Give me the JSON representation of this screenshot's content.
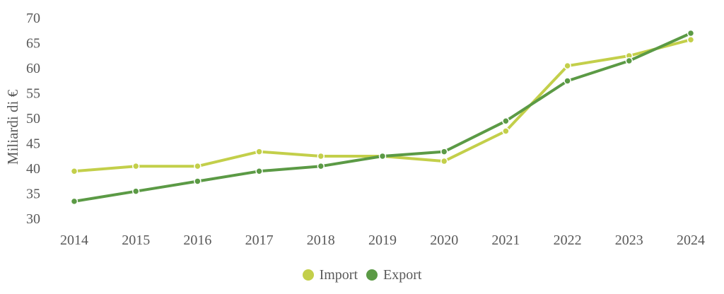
{
  "chart_data": {
    "type": "line",
    "ylabel": "Miliardi di €",
    "xlabel": "",
    "ylim": [
      30,
      70
    ],
    "yticks": [
      30,
      35,
      40,
      45,
      50,
      55,
      60,
      65,
      70
    ],
    "categories": [
      "2014",
      "2015",
      "2016",
      "2017",
      "2018",
      "2019",
      "2020",
      "2021",
      "2022",
      "2023",
      "2024"
    ],
    "series": [
      {
        "name": "Import",
        "color": "#c3cf4a",
        "values": [
          39.4,
          40.4,
          40.4,
          43.3,
          42.4,
          42.4,
          41.4,
          47.4,
          60.4,
          62.4,
          65.6
        ]
      },
      {
        "name": "Export",
        "color": "#5b9a45",
        "values": [
          33.4,
          35.4,
          37.4,
          39.4,
          40.4,
          42.4,
          43.3,
          49.4,
          57.4,
          61.4,
          66.9
        ]
      }
    ],
    "legend_position": "bottom",
    "grid": false
  }
}
